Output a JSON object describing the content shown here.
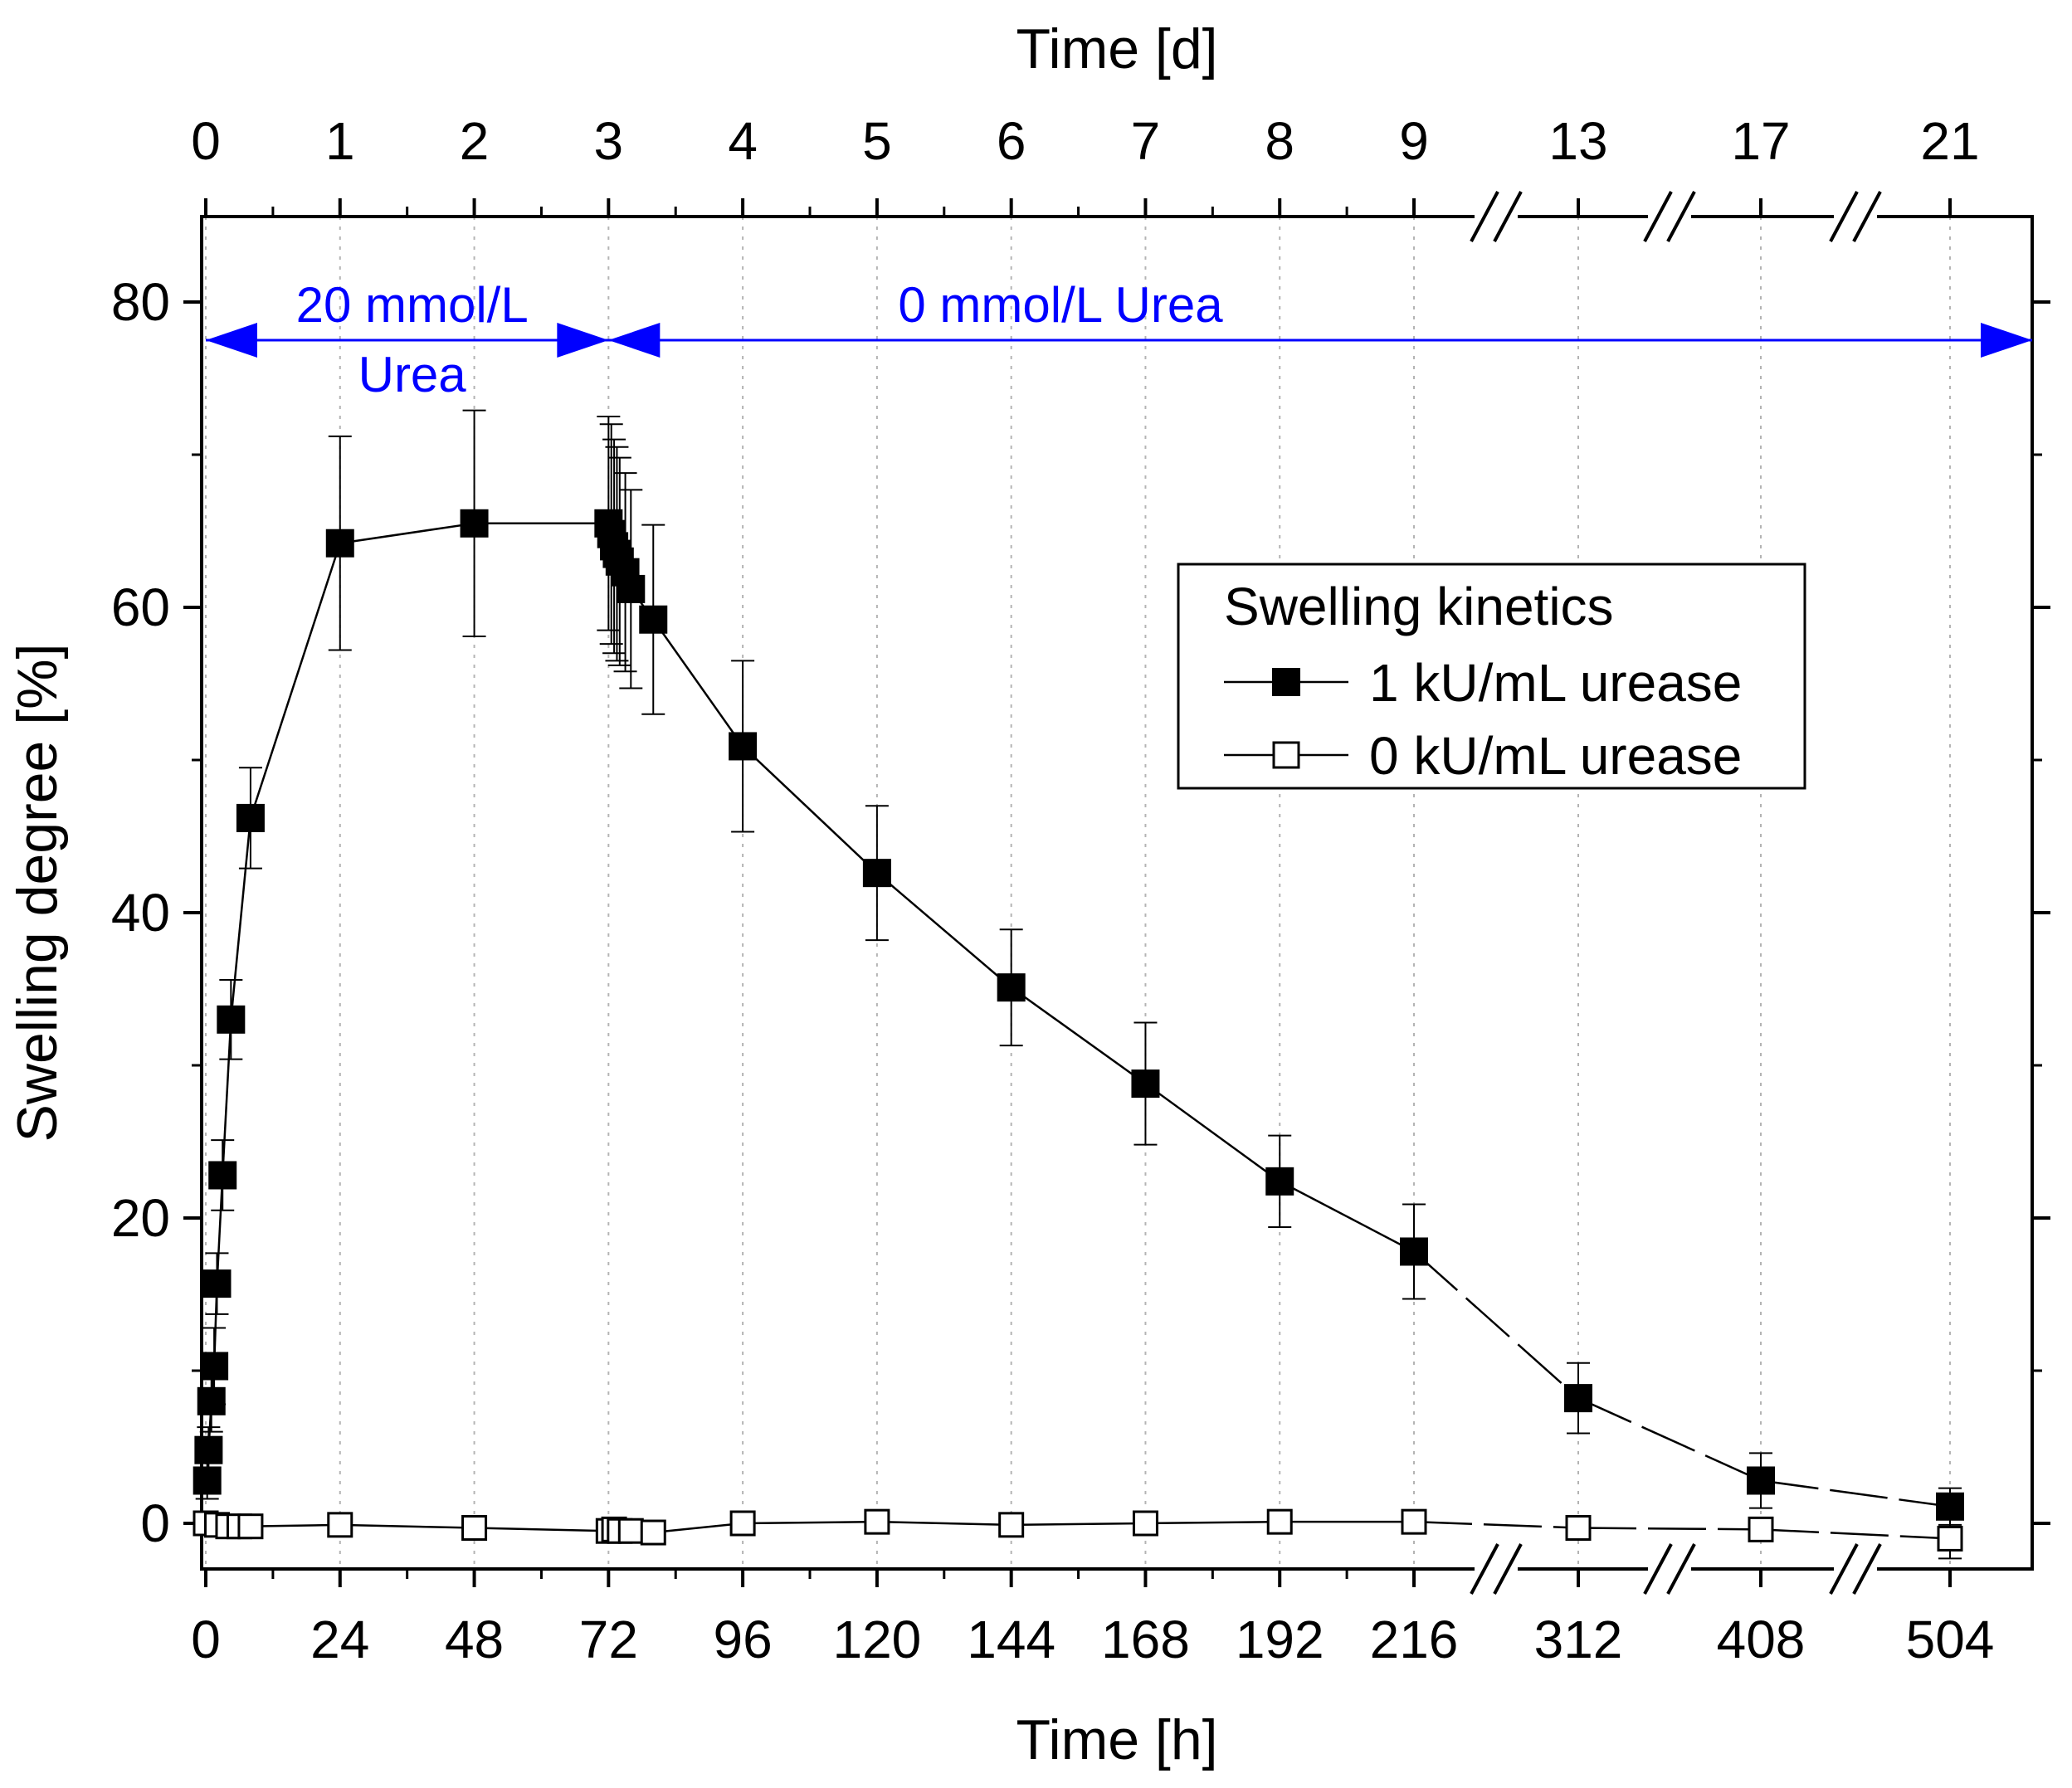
{
  "chart_data": {
    "type": "line",
    "xlabel": "Time [h]",
    "x2label": "Time [d]",
    "ylabel": "Swelling degree [%]",
    "ylim": [
      -3,
      85
    ],
    "yticks": [
      0,
      20,
      40,
      60,
      80
    ],
    "x_breaks": [
      {
        "from": 216,
        "to": 312
      },
      {
        "from": 312,
        "to": 408
      },
      {
        "from": 408,
        "to": 504
      }
    ],
    "xticks_bottom": [
      {
        "value": 0,
        "label": "0"
      },
      {
        "value": 24,
        "label": "24"
      },
      {
        "value": 48,
        "label": "48"
      },
      {
        "value": 72,
        "label": "72"
      },
      {
        "value": 96,
        "label": "96"
      },
      {
        "value": 120,
        "label": "120"
      },
      {
        "value": 144,
        "label": "144"
      },
      {
        "value": 168,
        "label": "168"
      },
      {
        "value": 192,
        "label": "192"
      },
      {
        "value": 216,
        "label": "216"
      },
      {
        "value": 312,
        "label": "312"
      },
      {
        "value": 408,
        "label": "408"
      },
      {
        "value": 504,
        "label": "504"
      }
    ],
    "xticks_top": [
      {
        "value": 0,
        "label": "0"
      },
      {
        "value": 24,
        "label": "1"
      },
      {
        "value": 48,
        "label": "2"
      },
      {
        "value": 72,
        "label": "3"
      },
      {
        "value": 96,
        "label": "4"
      },
      {
        "value": 120,
        "label": "5"
      },
      {
        "value": 144,
        "label": "6"
      },
      {
        "value": 168,
        "label": "7"
      },
      {
        "value": 192,
        "label": "8"
      },
      {
        "value": 216,
        "label": "9"
      },
      {
        "value": 312,
        "label": "13"
      },
      {
        "value": 408,
        "label": "17"
      },
      {
        "value": 504,
        "label": "21"
      }
    ],
    "annotations": [
      {
        "text_line1": "20 mmol/L",
        "text_line2": "Urea",
        "x_from": 0,
        "x_to": 72,
        "y": 77.5
      },
      {
        "text_line1": "0 mmol/L Urea",
        "x_from": 72,
        "x_to": 528,
        "y": 77.5
      }
    ],
    "legend": {
      "title": "Swelling kinetics",
      "position": "center-right"
    },
    "series": [
      {
        "name": "1 kU/mL urease",
        "marker": "filled-square",
        "x": [
          0.25,
          0.5,
          1,
          1.5,
          2,
          3,
          4.5,
          8,
          24,
          48,
          72,
          72.5,
          73,
          73.5,
          74,
          75,
          76,
          80,
          96,
          120,
          144,
          168,
          192,
          216,
          312,
          408,
          504
        ],
        "y": [
          2.8,
          4.8,
          8.0,
          10.3,
          15.7,
          22.8,
          33.0,
          46.2,
          64.2,
          65.5,
          65.5,
          64.8,
          64.0,
          63.5,
          63.0,
          62.3,
          61.2,
          59.2,
          50.9,
          42.6,
          35.1,
          28.8,
          22.4,
          17.8,
          8.2,
          2.8,
          1.1
        ],
        "err": [
          1.2,
          1.5,
          2.0,
          2.5,
          2.0,
          2.3,
          2.6,
          3.3,
          7.0,
          7.4,
          7.0,
          7.2,
          7.0,
          7.0,
          6.8,
          6.5,
          6.5,
          6.2,
          5.6,
          4.4,
          3.8,
          4.0,
          3.0,
          3.1,
          2.3,
          1.8,
          1.2
        ]
      },
      {
        "name": "0 kU/mL urease",
        "marker": "open-square",
        "x": [
          0,
          2,
          4,
          6,
          8,
          24,
          48,
          72,
          73,
          74,
          76,
          80,
          96,
          120,
          144,
          168,
          192,
          216,
          312,
          408,
          504
        ],
        "y": [
          0,
          -0.1,
          -0.2,
          -0.2,
          -0.2,
          -0.1,
          -0.3,
          -0.5,
          -0.4,
          -0.5,
          -0.5,
          -0.6,
          0.0,
          0.1,
          -0.1,
          0.0,
          0.1,
          0.1,
          -0.3,
          -0.4,
          -1.0
        ],
        "err": [
          0.4,
          0.4,
          0.4,
          0.4,
          0.4,
          0.5,
          0.5,
          0.5,
          0.5,
          0.5,
          0.5,
          0.5,
          0.6,
          0.6,
          0.5,
          0.6,
          0.6,
          0.5,
          0.6,
          0.7,
          1.3
        ]
      }
    ]
  }
}
